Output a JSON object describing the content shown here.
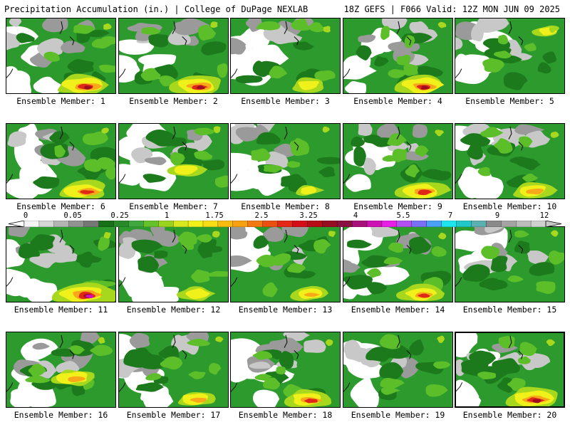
{
  "header": {
    "left": "Precipitation Accumulation (in.) | College of DuPage NEXLAB",
    "right": "18Z GEFS | F066 Valid: 12Z MON JUN 09 2025"
  },
  "caption_prefix": "Ensemble Member:",
  "members": [
    {
      "label": "Ensemble Member: 1",
      "intensity": 0.85,
      "hot": "south"
    },
    {
      "label": "Ensemble Member: 2",
      "intensity": 0.8,
      "hot": "south"
    },
    {
      "label": "Ensemble Member: 3",
      "intensity": 0.45,
      "hot": "south"
    },
    {
      "label": "Ensemble Member: 4",
      "intensity": 0.8,
      "hot": "south"
    },
    {
      "label": "Ensemble Member: 5",
      "intensity": 0.3,
      "hot": "north"
    },
    {
      "label": "Ensemble Member: 6",
      "intensity": 0.75,
      "hot": "south"
    },
    {
      "label": "Ensemble Member: 7",
      "intensity": 0.45,
      "hot": "center"
    },
    {
      "label": "Ensemble Member: 8",
      "intensity": 0.3,
      "hot": "south"
    },
    {
      "label": "Ensemble Member: 9",
      "intensity": 0.75,
      "hot": "south"
    },
    {
      "label": "Ensemble Member: 10",
      "intensity": 0.6,
      "hot": "south"
    },
    {
      "label": "Ensemble Member: 11",
      "intensity": 1.0,
      "hot": "south"
    },
    {
      "label": "Ensemble Member: 12",
      "intensity": 0.45,
      "hot": "south"
    },
    {
      "label": "Ensemble Member: 13",
      "intensity": 0.5,
      "hot": "south"
    },
    {
      "label": "Ensemble Member: 14",
      "intensity": 0.65,
      "hot": "south"
    },
    {
      "label": "Ensemble Member: 15",
      "intensity": 0.2,
      "hot": "none"
    },
    {
      "label": "Ensemble Member: 16",
      "intensity": 0.6,
      "hot": "center"
    },
    {
      "label": "Ensemble Member: 17",
      "intensity": 0.55,
      "hot": "south"
    },
    {
      "label": "Ensemble Member: 18",
      "intensity": 0.7,
      "hot": "south"
    },
    {
      "label": "Ensemble Member: 19",
      "intensity": 0.3,
      "hot": "none"
    },
    {
      "label": "Ensemble Member: 20",
      "intensity": 0.85,
      "hot": "south"
    }
  ],
  "colorbar": {
    "labels": [
      "0",
      "0.05",
      "0.25",
      "1",
      "1.75",
      "2.5",
      "3.25",
      "4",
      "5.5",
      "7",
      "9",
      "12"
    ],
    "colors": [
      "#f4f4f4",
      "#d6d6d6",
      "#b4b4b4",
      "#929292",
      "#777777",
      "#176f17",
      "#2a8a2a",
      "#3fa83f",
      "#66c22a",
      "#9ad41e",
      "#d8e81e",
      "#f2f21a",
      "#f8dc14",
      "#f8bc10",
      "#f8a010",
      "#f27a10",
      "#ec5010",
      "#e42818",
      "#d40c18",
      "#b60c18",
      "#960c20",
      "#8a1040",
      "#a8107a",
      "#cc10b4",
      "#e61ee6",
      "#b250f0",
      "#7a70f4",
      "#4aa0f4",
      "#1ee6f0",
      "#20c8c8",
      "#5ab0b0",
      "#8a8a8a",
      "#a4a4a4",
      "#bcbcbc",
      "#d0d0d0"
    ]
  },
  "palette": {
    "white": "#ffffff",
    "light_gray": "#c8c8c8",
    "gray": "#9a9a9a",
    "dark_gray": "#7a7a7a",
    "dark_green": "#1c7a1c",
    "green": "#2d9a2d",
    "light_green": "#5cbf2a",
    "yellow_green": "#a8d81e",
    "yellow": "#f0f01a",
    "orange": "#f8a818",
    "red": "#e02818",
    "dark_red": "#a00c20",
    "magenta": "#d010c0"
  }
}
